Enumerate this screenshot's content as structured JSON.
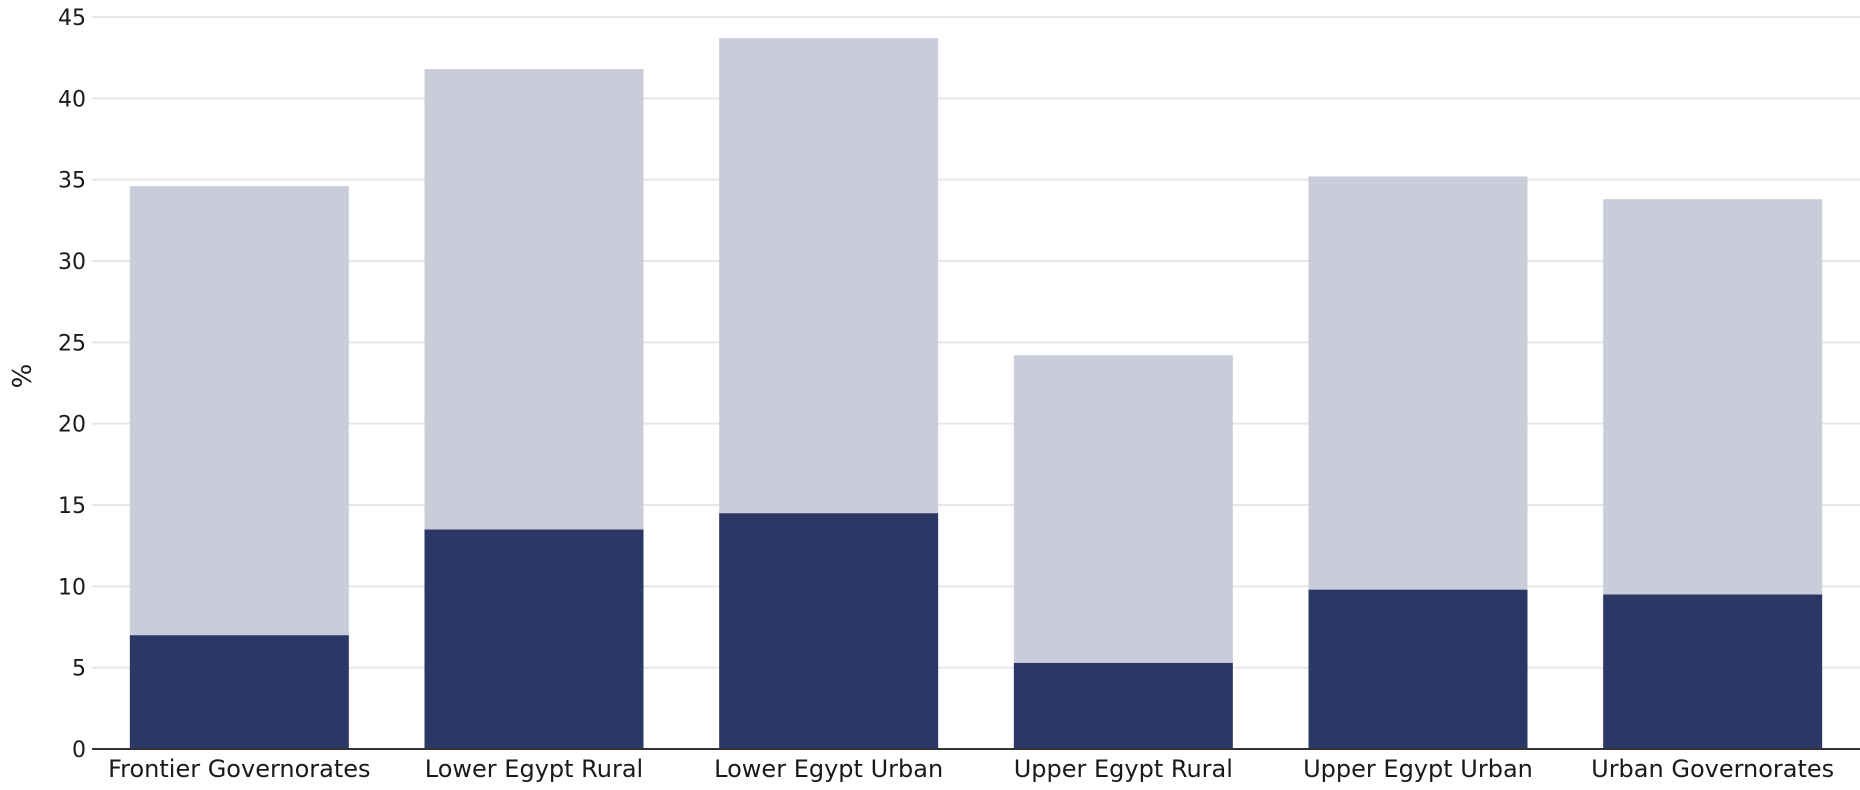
{
  "chart_data": {
    "type": "bar",
    "stacked": true,
    "categories": [
      "Frontier Governorates",
      "Lower Egypt Rural",
      "Lower Egypt Urban",
      "Upper Egypt Rural",
      "Upper Egypt Urban",
      "Urban Governorates"
    ],
    "series": [
      {
        "values": [
          7.0,
          13.5,
          14.5,
          5.3,
          9.8,
          9.5
        ],
        "color": "#2b3765"
      },
      {
        "values": [
          27.6,
          28.3,
          29.2,
          18.9,
          25.4,
          24.3
        ],
        "color": "#c9ccd9"
      }
    ],
    "totals": [
      34.6,
      41.8,
      43.7,
      24.2,
      35.2,
      33.8
    ],
    "title": "",
    "xlabel": "",
    "ylabel": "%",
    "ylim": [
      0,
      45
    ],
    "yticks": [
      0,
      5,
      10,
      15,
      20,
      25,
      30,
      35,
      40,
      45
    ],
    "grid": true
  }
}
